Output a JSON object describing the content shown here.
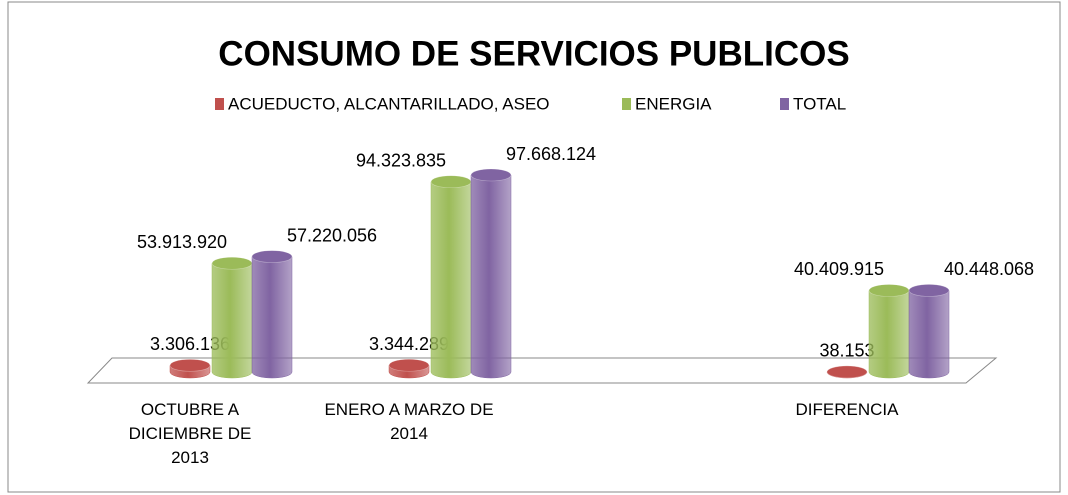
{
  "chart_data": {
    "type": "bar3d",
    "title": "CONSUMO DE SERVICIOS PUBLICOS",
    "categories": [
      "OCTUBRE A DICIEMBRE DE 2013",
      "ENERO A MARZO DE 2014",
      null,
      "DIFERENCIA"
    ],
    "series": [
      {
        "name": "ACUEDUCTO, ALCANTARILLADO, ASEO",
        "color": "#c0504d",
        "values": [
          3306136,
          3344289,
          null,
          38153
        ],
        "value_labels": [
          "3.306.136",
          "3.344.289",
          null,
          "38.153"
        ]
      },
      {
        "name": "ENERGIA",
        "color": "#9bbb59",
        "values": [
          53913920,
          94323835,
          null,
          40409915
        ],
        "value_labels": [
          "53.913.920",
          "94.323.835",
          null,
          "40.409.915"
        ]
      },
      {
        "name": "TOTAL",
        "color": "#8064a2",
        "values": [
          57220056,
          97668124,
          null,
          40448068
        ],
        "value_labels": [
          "57.220.056",
          "97.668.124",
          null,
          "40.448.068"
        ]
      }
    ],
    "legend": "top"
  }
}
